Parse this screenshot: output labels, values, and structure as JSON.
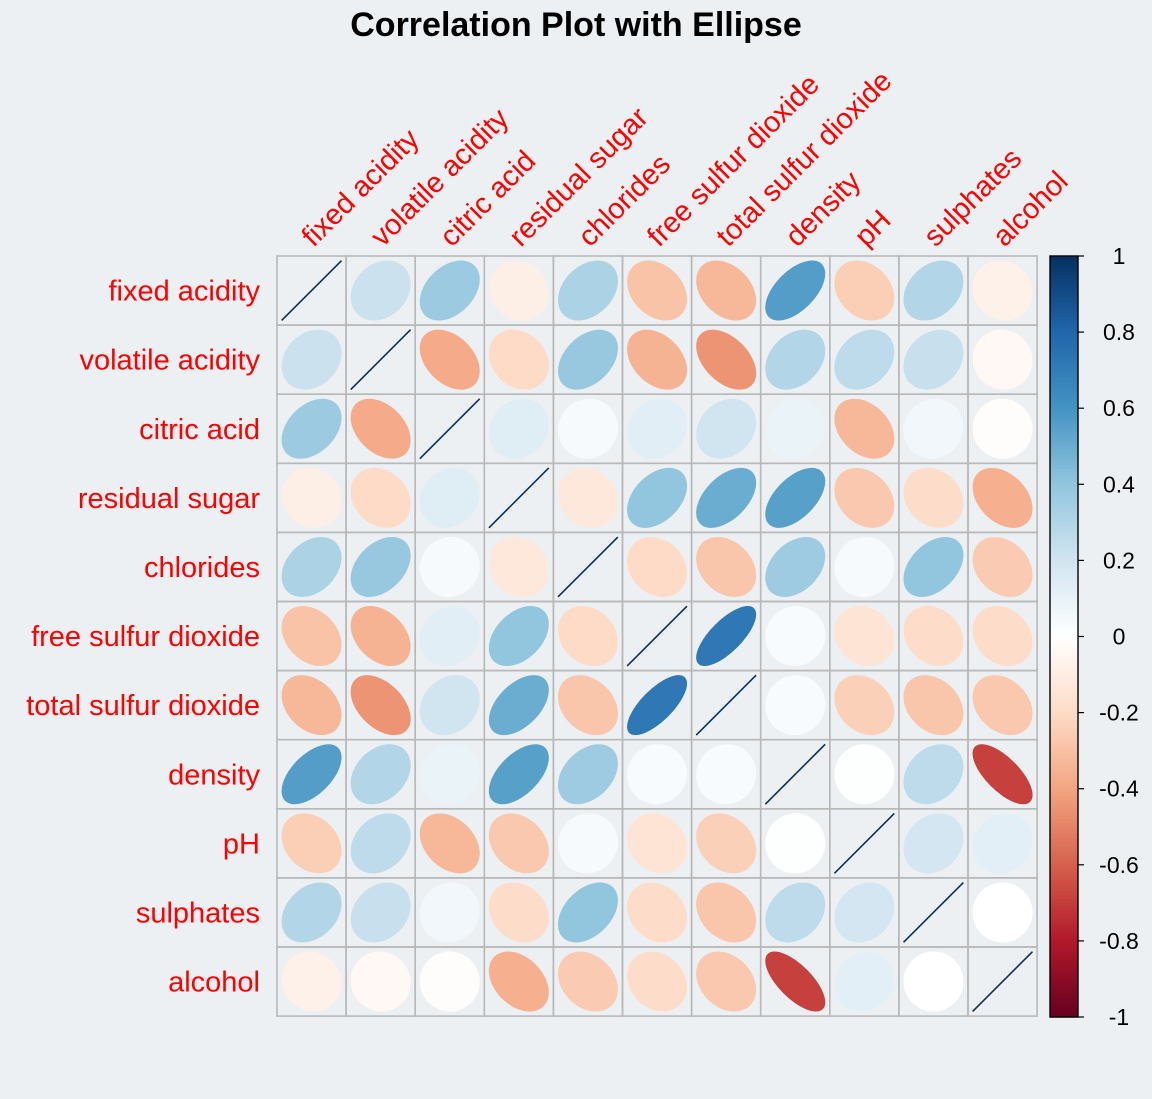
{
  "chart_data": {
    "type": "heatmap",
    "title": "Correlation Plot with Ellipse",
    "method": "ellipse",
    "label_color": "#ff0000",
    "variables": [
      "fixed acidity",
      "volatile acidity",
      "citric acid",
      "residual sugar",
      "chlorides",
      "free sulfur dioxide",
      "total sulfur dioxide",
      "density",
      "pH",
      "sulphates",
      "alcohol"
    ],
    "matrix": [
      [
        1.0,
        0.22,
        0.37,
        -0.09,
        0.32,
        -0.29,
        -0.33,
        0.56,
        -0.25,
        0.3,
        -0.08
      ],
      [
        0.22,
        1.0,
        -0.38,
        -0.2,
        0.38,
        -0.35,
        -0.45,
        0.3,
        0.26,
        0.23,
        -0.04
      ],
      [
        0.37,
        -0.38,
        1.0,
        0.14,
        0.04,
        0.13,
        0.2,
        0.09,
        -0.33,
        0.06,
        -0.01
      ],
      [
        -0.09,
        -0.2,
        0.14,
        1.0,
        -0.13,
        0.4,
        0.5,
        0.55,
        -0.27,
        -0.19,
        -0.36
      ],
      [
        0.32,
        0.38,
        0.04,
        -0.13,
        1.0,
        -0.2,
        -0.28,
        0.36,
        0.04,
        0.4,
        -0.26
      ],
      [
        -0.29,
        -0.35,
        0.13,
        0.4,
        -0.2,
        1.0,
        0.72,
        0.03,
        -0.15,
        -0.19,
        -0.19
      ],
      [
        -0.33,
        -0.45,
        0.2,
        0.5,
        -0.28,
        0.72,
        1.0,
        0.03,
        -0.24,
        -0.28,
        -0.27
      ],
      [
        0.56,
        0.3,
        0.09,
        0.55,
        0.36,
        0.03,
        0.03,
        1.0,
        0.01,
        0.26,
        -0.69
      ],
      [
        -0.25,
        0.26,
        -0.33,
        -0.27,
        0.04,
        -0.15,
        -0.24,
        0.01,
        1.0,
        0.19,
        0.12
      ],
      [
        0.3,
        0.23,
        0.06,
        -0.19,
        0.4,
        -0.19,
        -0.28,
        0.26,
        0.19,
        1.0,
        0.0
      ],
      [
        -0.08,
        -0.04,
        -0.01,
        -0.36,
        -0.26,
        -0.19,
        -0.27,
        -0.69,
        0.12,
        0.0,
        1.0
      ]
    ],
    "colorbar": {
      "ticks": [
        "1",
        "0.8",
        "0.6",
        "0.4",
        "0.2",
        "0",
        "-0.2",
        "-0.4",
        "-0.6",
        "-0.8",
        "-1"
      ],
      "range": [
        -1,
        1
      ],
      "palette": [
        "#67001f",
        "#b2182b",
        "#d6604d",
        "#f4a582",
        "#fddbc7",
        "#ffffff",
        "#d1e5f0",
        "#92c5de",
        "#4393c3",
        "#2166ac",
        "#053061"
      ]
    },
    "grid_color": "#b8b8b8",
    "background": "#edf0f2"
  }
}
